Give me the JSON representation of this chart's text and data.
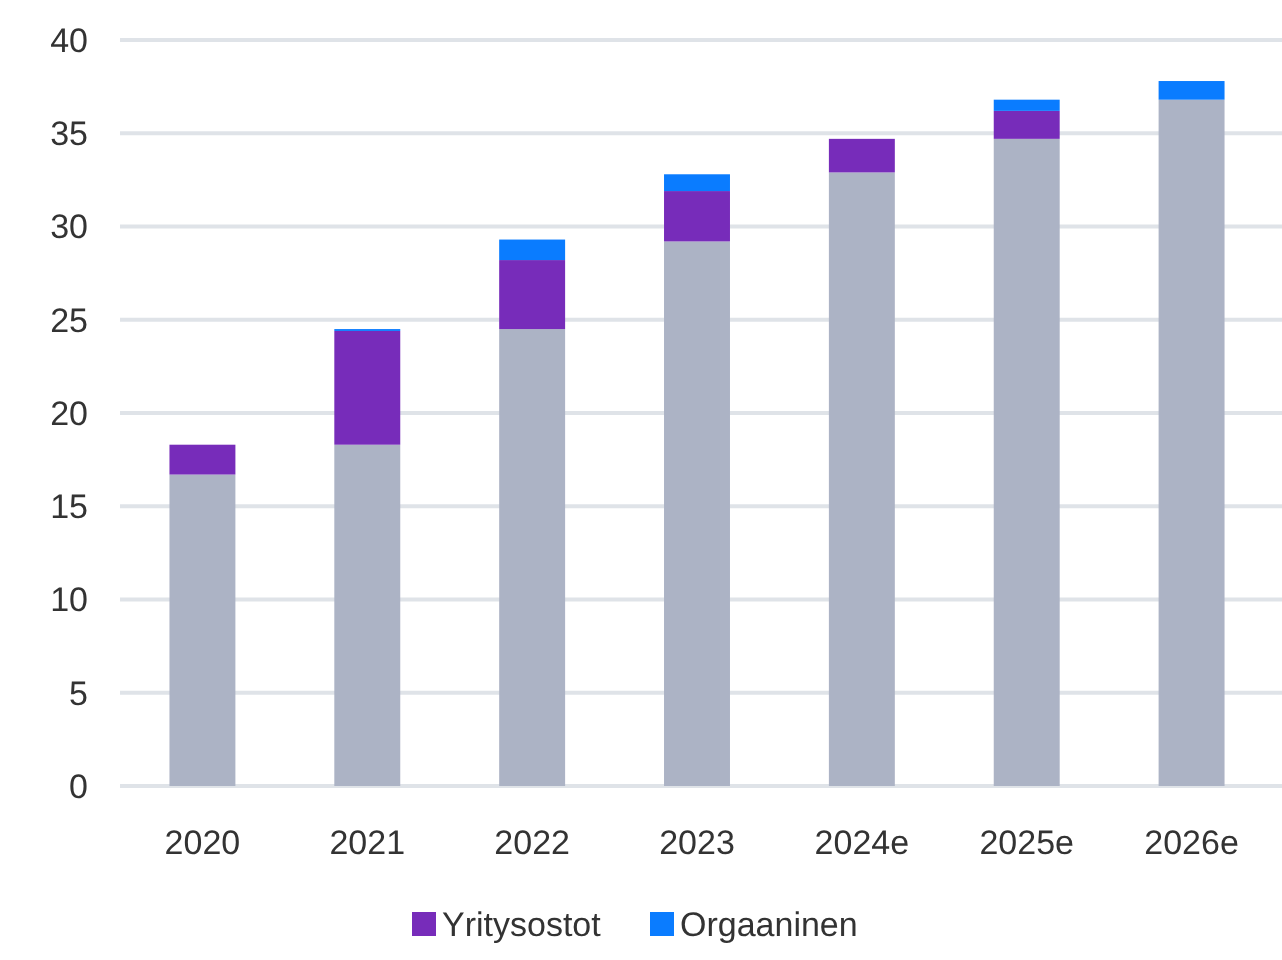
{
  "chart_data": {
    "type": "bar",
    "stacked": true,
    "categories": [
      "2020",
      "2021",
      "2022",
      "2023",
      "2024e",
      "2025e",
      "2026e"
    ],
    "series": [
      {
        "color": "#acb3c5",
        "values": [
          16.7,
          18.3,
          24.5,
          29.2,
          32.9,
          34.7,
          36.8
        ]
      },
      {
        "name": "Yritysostot",
        "color": "#772cba",
        "values": [
          1.6,
          6.1,
          3.7,
          2.7,
          1.8,
          1.5,
          0
        ]
      },
      {
        "name": "Orgaaninen",
        "color": "#0a7cff",
        "values": [
          0,
          0.1,
          1.1,
          0.9,
          0,
          0.6,
          1.0
        ]
      }
    ],
    "ylim": [
      0,
      40
    ],
    "yticks": [
      0,
      5,
      10,
      15,
      20,
      25,
      30,
      35,
      40
    ],
    "grid": "y",
    "legend": "bottom"
  }
}
